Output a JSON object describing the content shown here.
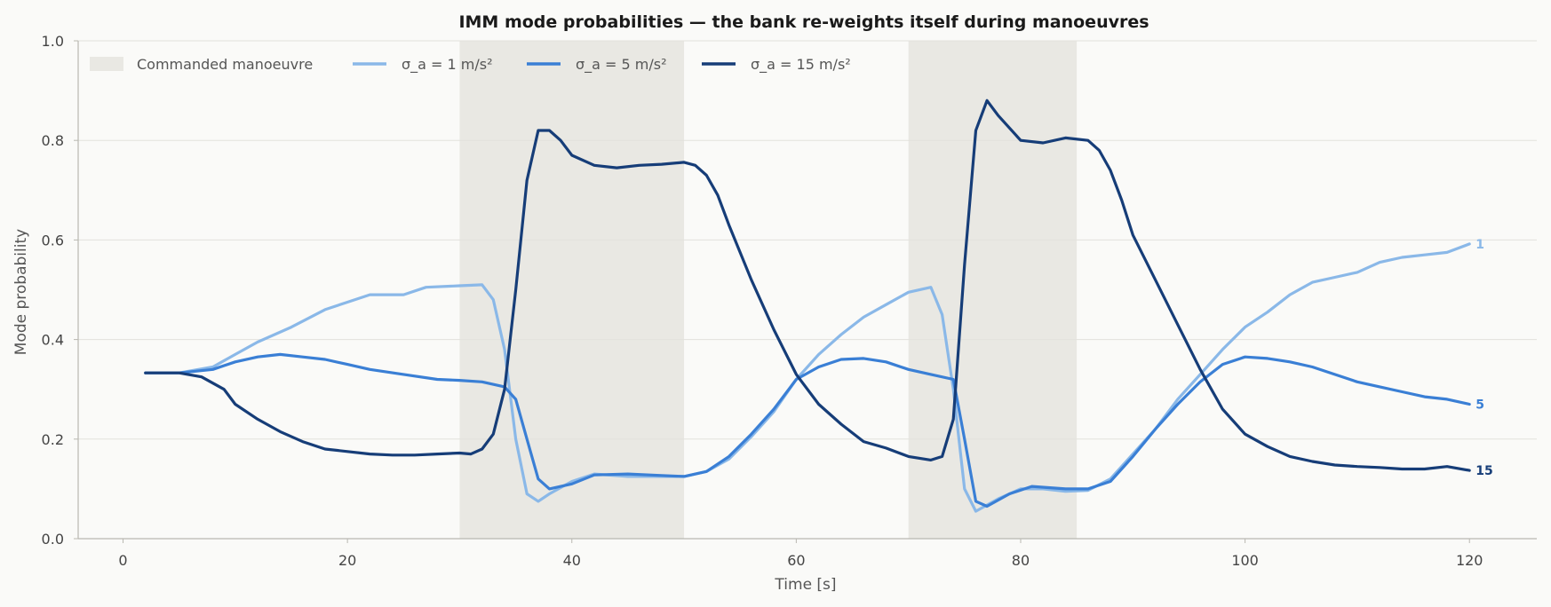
{
  "chart_data": {
    "type": "line",
    "title": "IMM mode probabilities — the bank re-weights itself during manoeuvres",
    "xlabel": "Time [s]",
    "ylabel": "Mode probability",
    "xlim": [
      -4,
      126
    ],
    "ylim": [
      0,
      1
    ],
    "xticks": [
      0,
      20,
      40,
      60,
      80,
      100,
      120
    ],
    "yticks": [
      "0.0",
      "0.2",
      "0.4",
      "0.6",
      "0.8",
      "1.0"
    ],
    "grid": "horizontal",
    "legend_position": "top-left",
    "manoeuvres": {
      "label": "Commanded manoeuvre",
      "color": "#e9e8e3",
      "intervals": [
        [
          30,
          50
        ],
        [
          70,
          85
        ]
      ]
    },
    "series": [
      {
        "name": "σ_a = 1 m/s²",
        "end_label": "1",
        "color": "#8ab8e8",
        "points": [
          [
            2,
            0.333
          ],
          [
            5,
            0.333
          ],
          [
            8,
            0.345
          ],
          [
            10,
            0.37
          ],
          [
            12,
            0.395
          ],
          [
            15,
            0.425
          ],
          [
            18,
            0.46
          ],
          [
            20,
            0.475
          ],
          [
            22,
            0.49
          ],
          [
            25,
            0.49
          ],
          [
            27,
            0.505
          ],
          [
            30,
            0.508
          ],
          [
            32,
            0.51
          ],
          [
            33,
            0.48
          ],
          [
            34,
            0.38
          ],
          [
            35,
            0.2
          ],
          [
            36,
            0.09
          ],
          [
            37,
            0.075
          ],
          [
            38,
            0.09
          ],
          [
            40,
            0.115
          ],
          [
            42,
            0.13
          ],
          [
            45,
            0.125
          ],
          [
            48,
            0.125
          ],
          [
            50,
            0.125
          ],
          [
            52,
            0.135
          ],
          [
            54,
            0.16
          ],
          [
            56,
            0.205
          ],
          [
            58,
            0.255
          ],
          [
            60,
            0.32
          ],
          [
            62,
            0.37
          ],
          [
            64,
            0.41
          ],
          [
            66,
            0.445
          ],
          [
            68,
            0.47
          ],
          [
            70,
            0.495
          ],
          [
            72,
            0.505
          ],
          [
            73,
            0.45
          ],
          [
            74,
            0.3
          ],
          [
            75,
            0.1
          ],
          [
            76,
            0.055
          ],
          [
            78,
            0.08
          ],
          [
            80,
            0.1
          ],
          [
            82,
            0.1
          ],
          [
            84,
            0.095
          ],
          [
            86,
            0.097
          ],
          [
            88,
            0.12
          ],
          [
            90,
            0.17
          ],
          [
            92,
            0.22
          ],
          [
            94,
            0.28
          ],
          [
            96,
            0.33
          ],
          [
            98,
            0.38
          ],
          [
            100,
            0.425
          ],
          [
            102,
            0.455
          ],
          [
            104,
            0.49
          ],
          [
            106,
            0.515
          ],
          [
            108,
            0.525
          ],
          [
            110,
            0.535
          ],
          [
            112,
            0.555
          ],
          [
            114,
            0.565
          ],
          [
            116,
            0.57
          ],
          [
            118,
            0.575
          ],
          [
            120,
            0.592
          ]
        ]
      },
      {
        "name": "σ_a = 5 m/s²",
        "end_label": "5",
        "color": "#3a7fd5",
        "points": [
          [
            2,
            0.333
          ],
          [
            5,
            0.333
          ],
          [
            8,
            0.34
          ],
          [
            10,
            0.355
          ],
          [
            12,
            0.365
          ],
          [
            14,
            0.37
          ],
          [
            16,
            0.365
          ],
          [
            18,
            0.36
          ],
          [
            20,
            0.35
          ],
          [
            22,
            0.34
          ],
          [
            25,
            0.33
          ],
          [
            28,
            0.32
          ],
          [
            30,
            0.318
          ],
          [
            32,
            0.315
          ],
          [
            34,
            0.305
          ],
          [
            35,
            0.28
          ],
          [
            36,
            0.2
          ],
          [
            37,
            0.12
          ],
          [
            38,
            0.1
          ],
          [
            40,
            0.11
          ],
          [
            42,
            0.128
          ],
          [
            45,
            0.13
          ],
          [
            48,
            0.127
          ],
          [
            50,
            0.125
          ],
          [
            52,
            0.135
          ],
          [
            54,
            0.165
          ],
          [
            56,
            0.21
          ],
          [
            58,
            0.26
          ],
          [
            60,
            0.32
          ],
          [
            62,
            0.345
          ],
          [
            64,
            0.36
          ],
          [
            66,
            0.362
          ],
          [
            68,
            0.355
          ],
          [
            70,
            0.34
          ],
          [
            72,
            0.33
          ],
          [
            74,
            0.32
          ],
          [
            75,
            0.2
          ],
          [
            76,
            0.075
          ],
          [
            77,
            0.065
          ],
          [
            79,
            0.09
          ],
          [
            81,
            0.105
          ],
          [
            84,
            0.1
          ],
          [
            86,
            0.1
          ],
          [
            88,
            0.115
          ],
          [
            90,
            0.165
          ],
          [
            92,
            0.22
          ],
          [
            94,
            0.27
          ],
          [
            96,
            0.315
          ],
          [
            98,
            0.35
          ],
          [
            100,
            0.365
          ],
          [
            102,
            0.362
          ],
          [
            104,
            0.355
          ],
          [
            106,
            0.345
          ],
          [
            108,
            0.33
          ],
          [
            110,
            0.315
          ],
          [
            112,
            0.305
          ],
          [
            114,
            0.295
          ],
          [
            116,
            0.285
          ],
          [
            118,
            0.28
          ],
          [
            120,
            0.27
          ]
        ]
      },
      {
        "name": "σ_a = 15 m/s²",
        "end_label": "15",
        "color": "#163d78",
        "points": [
          [
            2,
            0.333
          ],
          [
            5,
            0.333
          ],
          [
            7,
            0.325
          ],
          [
            9,
            0.3
          ],
          [
            10,
            0.27
          ],
          [
            12,
            0.24
          ],
          [
            14,
            0.215
          ],
          [
            16,
            0.195
          ],
          [
            18,
            0.18
          ],
          [
            20,
            0.175
          ],
          [
            22,
            0.17
          ],
          [
            24,
            0.168
          ],
          [
            26,
            0.168
          ],
          [
            28,
            0.17
          ],
          [
            30,
            0.172
          ],
          [
            31,
            0.17
          ],
          [
            32,
            0.18
          ],
          [
            33,
            0.21
          ],
          [
            34,
            0.3
          ],
          [
            35,
            0.5
          ],
          [
            36,
            0.72
          ],
          [
            37,
            0.82
          ],
          [
            38,
            0.82
          ],
          [
            39,
            0.8
          ],
          [
            40,
            0.77
          ],
          [
            42,
            0.75
          ],
          [
            44,
            0.745
          ],
          [
            46,
            0.75
          ],
          [
            48,
            0.752
          ],
          [
            50,
            0.756
          ],
          [
            51,
            0.75
          ],
          [
            52,
            0.73
          ],
          [
            53,
            0.69
          ],
          [
            54,
            0.63
          ],
          [
            56,
            0.52
          ],
          [
            58,
            0.42
          ],
          [
            60,
            0.33
          ],
          [
            62,
            0.27
          ],
          [
            64,
            0.23
          ],
          [
            66,
            0.195
          ],
          [
            68,
            0.182
          ],
          [
            70,
            0.165
          ],
          [
            72,
            0.158
          ],
          [
            73,
            0.165
          ],
          [
            74,
            0.24
          ],
          [
            75,
            0.55
          ],
          [
            76,
            0.82
          ],
          [
            77,
            0.88
          ],
          [
            78,
            0.85
          ],
          [
            80,
            0.8
          ],
          [
            82,
            0.795
          ],
          [
            84,
            0.805
          ],
          [
            86,
            0.8
          ],
          [
            87,
            0.78
          ],
          [
            88,
            0.74
          ],
          [
            89,
            0.68
          ],
          [
            90,
            0.61
          ],
          [
            92,
            0.52
          ],
          [
            94,
            0.43
          ],
          [
            96,
            0.34
          ],
          [
            98,
            0.26
          ],
          [
            100,
            0.21
          ],
          [
            102,
            0.185
          ],
          [
            104,
            0.165
          ],
          [
            106,
            0.155
          ],
          [
            108,
            0.148
          ],
          [
            110,
            0.145
          ],
          [
            112,
            0.143
          ],
          [
            114,
            0.14
          ],
          [
            116,
            0.14
          ],
          [
            118,
            0.145
          ],
          [
            120,
            0.137
          ]
        ]
      }
    ]
  }
}
